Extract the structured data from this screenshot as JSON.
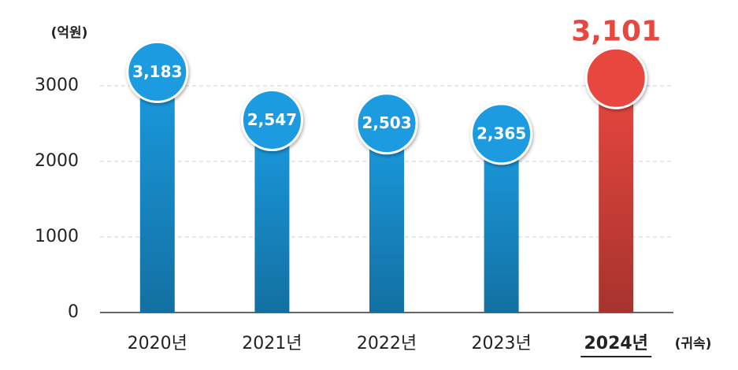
{
  "chart_data": {
    "type": "bar",
    "y_axis_label": "(억원)",
    "x_axis_note": "(귀속)",
    "categories": [
      "2020년",
      "2021년",
      "2022년",
      "2023년",
      "2024년"
    ],
    "values": [
      3183,
      2547,
      2503,
      2365,
      3101
    ],
    "value_labels": [
      "3,183",
      "2,547",
      "2,503",
      "2,365",
      "3,101"
    ],
    "colors": [
      "#1a9be0",
      "#1a9be0",
      "#1a9be0",
      "#1a9be0",
      "#e8473f"
    ],
    "ylim": [
      0,
      3000
    ],
    "yticks": [
      0,
      1000,
      2000,
      3000
    ],
    "grid": true
  }
}
